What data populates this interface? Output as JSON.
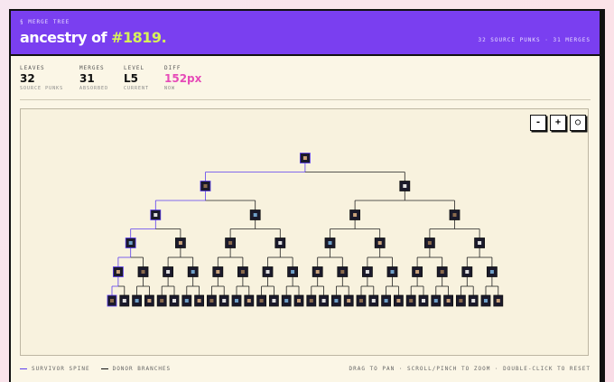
{
  "header": {
    "eyebrow": "§ MERGE TREE",
    "title_prefix": "ancestry of",
    "title_id": "#1819.",
    "summary": "32 SOURCE PUNKS · 31 MERGES"
  },
  "stats": [
    {
      "label": "LEAVES",
      "value": "32",
      "caption": "SOURCE PUNKS"
    },
    {
      "label": "MERGES",
      "value": "31",
      "caption": "ABSORBED"
    },
    {
      "label": "LEVEL",
      "value": "L5",
      "caption": "CURRENT"
    },
    {
      "label": "DIFF",
      "value": "152px",
      "caption": "NOW"
    }
  ],
  "controls": {
    "zoom_out": "-",
    "zoom_in": "+",
    "reset": "○"
  },
  "legend": {
    "spine": "SURVIVOR SPINE",
    "donor": "DONOR BRANCHES"
  },
  "hint": "DRAG TO PAN · SCROLL/PINCH TO ZOOM · DOUBLE-CLICK TO RESET"
}
